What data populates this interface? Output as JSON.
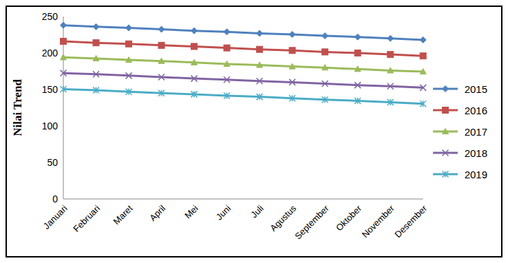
{
  "chart_data": {
    "type": "line",
    "y_label": "Nilai Trend",
    "categories": [
      "Januari",
      "Februari",
      "Maret",
      "April",
      "Mei",
      "Juni",
      "Juli",
      "Agustus",
      "September",
      "Oktober",
      "November",
      "Desember"
    ],
    "series": [
      {
        "name": "2015",
        "color": "#4f81bd",
        "marker": "diamond",
        "values": [
          238,
          236,
          234.5,
          232.5,
          230.5,
          229,
          227,
          225.5,
          223.5,
          222,
          220,
          218
        ]
      },
      {
        "name": "2016",
        "color": "#c0504d",
        "marker": "square",
        "values": [
          216,
          214,
          212.5,
          210.5,
          209,
          207,
          205,
          203.5,
          201.5,
          200,
          198,
          196
        ]
      },
      {
        "name": "2017",
        "color": "#9bbb59",
        "marker": "triangle",
        "values": [
          194,
          192.5,
          190.5,
          189,
          187,
          185,
          183.5,
          181.5,
          180,
          178,
          176,
          174.5
        ]
      },
      {
        "name": "2018",
        "color": "#8064a2",
        "marker": "x",
        "values": [
          172.5,
          171,
          169,
          167,
          165,
          163.5,
          161.5,
          160,
          158,
          156,
          154.5,
          152.5
        ]
      },
      {
        "name": "2019",
        "color": "#4bacc6",
        "marker": "star",
        "values": [
          150.5,
          149,
          147,
          145,
          143.5,
          141.5,
          140,
          138,
          136,
          134.5,
          132.5,
          130.5
        ]
      }
    ],
    "ylim": [
      0,
      250
    ],
    "yticks": [
      0,
      50,
      100,
      150,
      200,
      250
    ],
    "grid": false,
    "legend": "right"
  }
}
